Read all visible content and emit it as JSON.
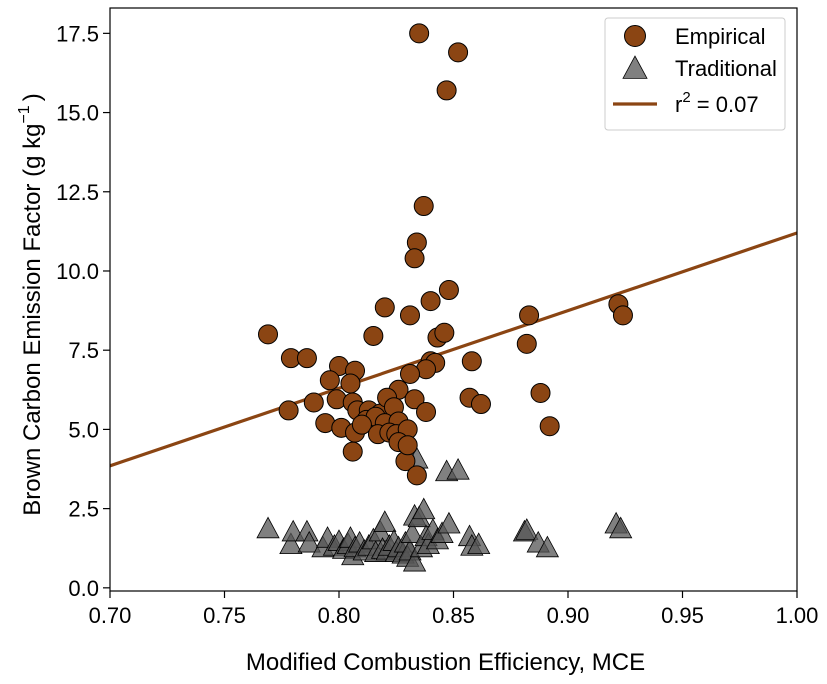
{
  "chart_data": {
    "type": "scatter",
    "xlabel": "Modified Combustion Efficiency, MCE",
    "ylabel": {
      "main": "Brown Carbon Emission Factor (g kg",
      "sup": "−1",
      "close": ")"
    },
    "xlim": [
      0.7,
      1.0
    ],
    "ylim": [
      -0.1,
      18.3
    ],
    "x_ticks": [
      "0.70",
      "0.75",
      "0.80",
      "0.85",
      "0.90",
      "0.95",
      "1.00"
    ],
    "y_ticks": [
      "0.0",
      "2.5",
      "5.0",
      "7.5",
      "10.0",
      "12.5",
      "15.0",
      "17.5"
    ],
    "x_tick_values": [
      0.7,
      0.75,
      0.8,
      0.85,
      0.9,
      0.95,
      1.0
    ],
    "y_tick_values": [
      0.0,
      2.5,
      5.0,
      7.5,
      10.0,
      12.5,
      15.0,
      17.5
    ],
    "grid": false,
    "legend_position": "top-right",
    "legend": [
      {
        "marker": "circle",
        "label": "Empirical"
      },
      {
        "marker": "triangle",
        "label": "Traditional"
      },
      {
        "marker": "line",
        "label_main": "r",
        "label_sup": "2",
        "label_rest": " = 0.07"
      }
    ],
    "colors": {
      "empirical_fill": "#8B4513",
      "empirical_edge": "#000000",
      "traditional_fill": "#555555",
      "traditional_edge": "#000000",
      "fit_line": "#8B4513"
    },
    "fit_line": {
      "x": [
        0.7,
        1.0
      ],
      "y": [
        3.85,
        11.2
      ]
    },
    "series": [
      {
        "name": "Empirical",
        "marker": "circle",
        "points": [
          [
            0.835,
            17.5
          ],
          [
            0.852,
            16.9
          ],
          [
            0.847,
            15.7
          ],
          [
            0.837,
            12.05
          ],
          [
            0.834,
            10.9
          ],
          [
            0.833,
            10.4
          ],
          [
            0.848,
            9.4
          ],
          [
            0.84,
            9.05
          ],
          [
            0.82,
            8.85
          ],
          [
            0.831,
            8.6
          ],
          [
            0.769,
            8.0
          ],
          [
            0.815,
            7.95
          ],
          [
            0.843,
            7.9
          ],
          [
            0.846,
            8.05
          ],
          [
            0.779,
            7.25
          ],
          [
            0.786,
            7.25
          ],
          [
            0.8,
            7.0
          ],
          [
            0.84,
            7.15
          ],
          [
            0.842,
            7.1
          ],
          [
            0.838,
            6.9
          ],
          [
            0.807,
            6.85
          ],
          [
            0.831,
            6.75
          ],
          [
            0.796,
            6.55
          ],
          [
            0.805,
            6.45
          ],
          [
            0.826,
            6.25
          ],
          [
            0.778,
            5.6
          ],
          [
            0.789,
            5.85
          ],
          [
            0.799,
            5.95
          ],
          [
            0.806,
            5.85
          ],
          [
            0.808,
            5.6
          ],
          [
            0.813,
            5.6
          ],
          [
            0.818,
            5.5
          ],
          [
            0.821,
            6.0
          ],
          [
            0.824,
            5.7
          ],
          [
            0.833,
            5.95
          ],
          [
            0.838,
            5.55
          ],
          [
            0.812,
            5.3
          ],
          [
            0.816,
            5.4
          ],
          [
            0.82,
            5.2
          ],
          [
            0.826,
            5.25
          ],
          [
            0.794,
            5.2
          ],
          [
            0.801,
            5.05
          ],
          [
            0.807,
            4.9
          ],
          [
            0.81,
            5.15
          ],
          [
            0.817,
            4.85
          ],
          [
            0.822,
            4.9
          ],
          [
            0.825,
            4.85
          ],
          [
            0.83,
            5.0
          ],
          [
            0.806,
            4.3
          ],
          [
            0.826,
            4.6
          ],
          [
            0.829,
            4.0
          ],
          [
            0.83,
            4.5
          ],
          [
            0.834,
            3.55
          ],
          [
            0.857,
            6.0
          ],
          [
            0.858,
            7.15
          ],
          [
            0.862,
            5.8
          ],
          [
            0.882,
            7.7
          ],
          [
            0.883,
            8.6
          ],
          [
            0.888,
            6.15
          ],
          [
            0.892,
            5.1
          ],
          [
            0.922,
            8.95
          ],
          [
            0.924,
            8.6
          ]
        ]
      },
      {
        "name": "Traditional",
        "marker": "triangle",
        "points": [
          [
            0.769,
            1.85
          ],
          [
            0.779,
            1.35
          ],
          [
            0.78,
            1.75
          ],
          [
            0.786,
            1.75
          ],
          [
            0.787,
            1.4
          ],
          [
            0.793,
            1.25
          ],
          [
            0.795,
            1.55
          ],
          [
            0.798,
            1.3
          ],
          [
            0.8,
            1.45
          ],
          [
            0.802,
            1.2
          ],
          [
            0.804,
            1.35
          ],
          [
            0.805,
            1.55
          ],
          [
            0.806,
            1.0
          ],
          [
            0.807,
            1.25
          ],
          [
            0.809,
            1.4
          ],
          [
            0.811,
            1.15
          ],
          [
            0.813,
            1.3
          ],
          [
            0.815,
            1.5
          ],
          [
            0.816,
            1.1
          ],
          [
            0.818,
            1.75
          ],
          [
            0.819,
            1.2
          ],
          [
            0.82,
            2.05
          ],
          [
            0.821,
            1.15
          ],
          [
            0.822,
            1.3
          ],
          [
            0.824,
            1.45
          ],
          [
            0.825,
            1.1
          ],
          [
            0.826,
            1.25
          ],
          [
            0.828,
            1.05
          ],
          [
            0.829,
            1.4
          ],
          [
            0.83,
            0.95
          ],
          [
            0.831,
            1.15
          ],
          [
            0.832,
            1.7
          ],
          [
            0.833,
            0.8
          ],
          [
            0.833,
            2.25
          ],
          [
            0.834,
            4.05
          ],
          [
            0.835,
            2.2
          ],
          [
            0.836,
            1.25
          ],
          [
            0.837,
            2.45
          ],
          [
            0.838,
            1.6
          ],
          [
            0.839,
            1.35
          ],
          [
            0.841,
            1.8
          ],
          [
            0.843,
            1.5
          ],
          [
            0.845,
            1.7
          ],
          [
            0.847,
            3.65
          ],
          [
            0.848,
            2.0
          ],
          [
            0.852,
            3.7
          ],
          [
            0.857,
            1.6
          ],
          [
            0.858,
            1.3
          ],
          [
            0.861,
            1.35
          ],
          [
            0.881,
            1.75
          ],
          [
            0.882,
            1.8
          ],
          [
            0.887,
            1.4
          ],
          [
            0.891,
            1.25
          ],
          [
            0.921,
            2.0
          ],
          [
            0.923,
            1.85
          ]
        ]
      }
    ]
  }
}
